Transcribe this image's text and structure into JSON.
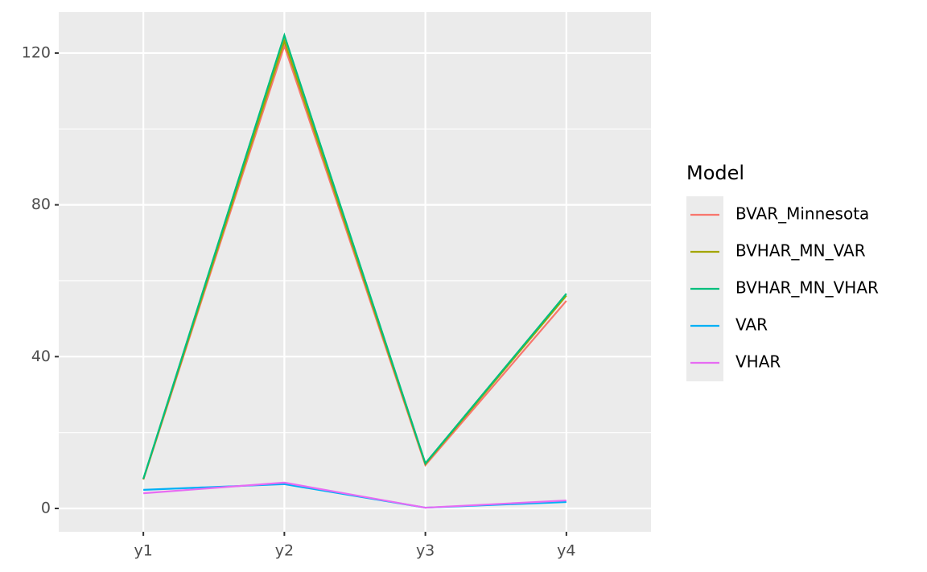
{
  "chart_data": {
    "type": "line",
    "categories": [
      "y1",
      "y2",
      "y3",
      "y4"
    ],
    "series": [
      {
        "name": "BVAR_Minnesota",
        "color": "#F8766D",
        "values": [
          7.6,
          121.9,
          11.4,
          54.7
        ]
      },
      {
        "name": "BVHAR_MN_VAR",
        "color": "#A3A500",
        "values": [
          7.7,
          123.2,
          11.7,
          56.1
        ]
      },
      {
        "name": "BVHAR_MN_VHAR",
        "color": "#00BF7D",
        "values": [
          7.8,
          124.7,
          11.9,
          56.6
        ]
      },
      {
        "name": "VAR",
        "color": "#00B0F6",
        "values": [
          4.9,
          6.4,
          0.2,
          1.7
        ]
      },
      {
        "name": "VHAR",
        "color": "#E76BF3",
        "values": [
          4.0,
          6.8,
          0.2,
          2.1
        ]
      }
    ],
    "legend_title": "Model",
    "legend_position": "right",
    "ylim": [
      -6.15,
      130.8
    ],
    "yticks": [
      0,
      40,
      80,
      120
    ],
    "y_minor_grid": [
      20,
      60,
      100
    ],
    "grid": true
  }
}
